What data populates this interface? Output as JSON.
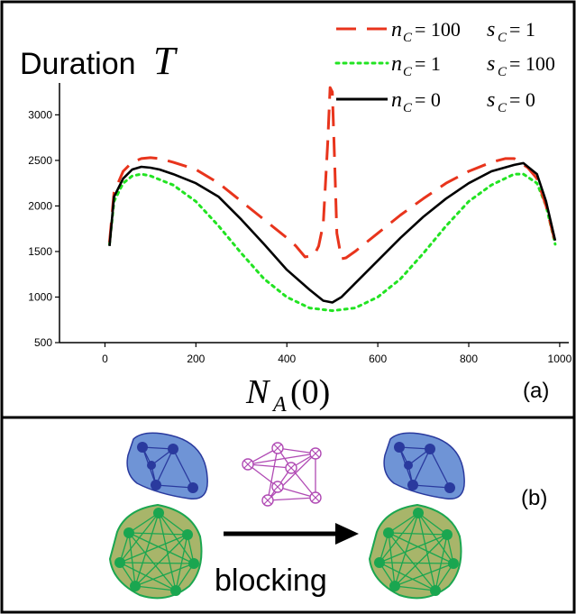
{
  "panel_a": {
    "title_text": "Duration",
    "title_var": "T",
    "label": "(a)",
    "xlabel_main": "N",
    "xlabel_sub": "A",
    "xlabel_paren": "(0)"
  },
  "panel_b": {
    "label": "(b)",
    "arrow_label": "blocking"
  },
  "legend": [
    {
      "n_var": "n",
      "n_sub": "C",
      "n_val": "= 100",
      "s_var": "s",
      "s_sub": "C",
      "s_val": "= 1",
      "color": "#e8341c",
      "dash": "dashed"
    },
    {
      "n_var": "n",
      "n_sub": "C",
      "n_val": "= 1",
      "s_var": "s",
      "s_sub": "C",
      "s_val": "= 100",
      "color": "#22e322",
      "dash": "dotted"
    },
    {
      "n_var": "n",
      "n_sub": "C",
      "n_val": "= 0",
      "s_var": "s",
      "s_sub": "C",
      "s_val": "= 0",
      "color": "#000000",
      "dash": "solid"
    }
  ],
  "chart_data": {
    "type": "line",
    "title": "Duration T",
    "xlabel": "N_A(0)",
    "ylabel": "",
    "xlim": [
      -100,
      1020
    ],
    "ylim": [
      500,
      3350
    ],
    "xticks": [
      0,
      200,
      400,
      600,
      800,
      1000
    ],
    "yticks": [
      500,
      1000,
      1500,
      2000,
      2500,
      3000
    ],
    "grid": false,
    "legend_position": "top-right",
    "series": [
      {
        "name": "n_C = 100 s_C = 1",
        "color": "#e8341c",
        "style": "dashed",
        "x": [
          10,
          20,
          40,
          60,
          80,
          100,
          120,
          150,
          200,
          250,
          300,
          350,
          400,
          420,
          440,
          460,
          470,
          480,
          490,
          495,
          500,
          505,
          510,
          520,
          530,
          550,
          600,
          650,
          700,
          750,
          800,
          850,
          880,
          900,
          930,
          950,
          970,
          990
        ],
        "y": [
          1600,
          2150,
          2380,
          2480,
          2520,
          2530,
          2520,
          2480,
          2400,
          2250,
          2050,
          1850,
          1650,
          1560,
          1440,
          1460,
          1560,
          1800,
          2700,
          3300,
          3250,
          2500,
          1700,
          1420,
          1430,
          1500,
          1700,
          1900,
          2080,
          2250,
          2380,
          2480,
          2520,
          2520,
          2420,
          2300,
          2000,
          1600
        ]
      },
      {
        "name": "n_C = 1 s_C = 100",
        "color": "#22e322",
        "style": "dotted",
        "x": [
          10,
          20,
          40,
          60,
          80,
          100,
          150,
          200,
          250,
          300,
          350,
          400,
          450,
          500,
          550,
          600,
          650,
          700,
          750,
          800,
          850,
          900,
          920,
          950,
          970,
          990
        ],
        "y": [
          1580,
          2050,
          2250,
          2330,
          2350,
          2330,
          2230,
          2050,
          1780,
          1480,
          1200,
          1000,
          880,
          850,
          880,
          1000,
          1200,
          1480,
          1780,
          2050,
          2230,
          2350,
          2350,
          2250,
          2000,
          1580
        ]
      },
      {
        "name": "n_C = 0 s_C = 0",
        "color": "#000000",
        "style": "solid",
        "x": [
          10,
          20,
          40,
          60,
          80,
          100,
          120,
          150,
          200,
          250,
          300,
          350,
          400,
          450,
          480,
          500,
          520,
          550,
          600,
          650,
          700,
          750,
          800,
          850,
          900,
          920,
          950,
          970,
          990
        ],
        "y": [
          1560,
          2100,
          2300,
          2400,
          2430,
          2420,
          2400,
          2350,
          2250,
          2100,
          1850,
          1580,
          1300,
          1080,
          960,
          940,
          1000,
          1150,
          1400,
          1650,
          1880,
          2080,
          2250,
          2380,
          2450,
          2470,
          2350,
          2050,
          1620
        ]
      }
    ]
  },
  "colors": {
    "frame": "#000000",
    "blue_fill": "#6f94d6",
    "blue_node": "#2a3a9e",
    "green_fill": "#a8b56a",
    "green_node": "#1aa650",
    "green_edge": "#1aa650",
    "magenta": "#b04ab4"
  }
}
